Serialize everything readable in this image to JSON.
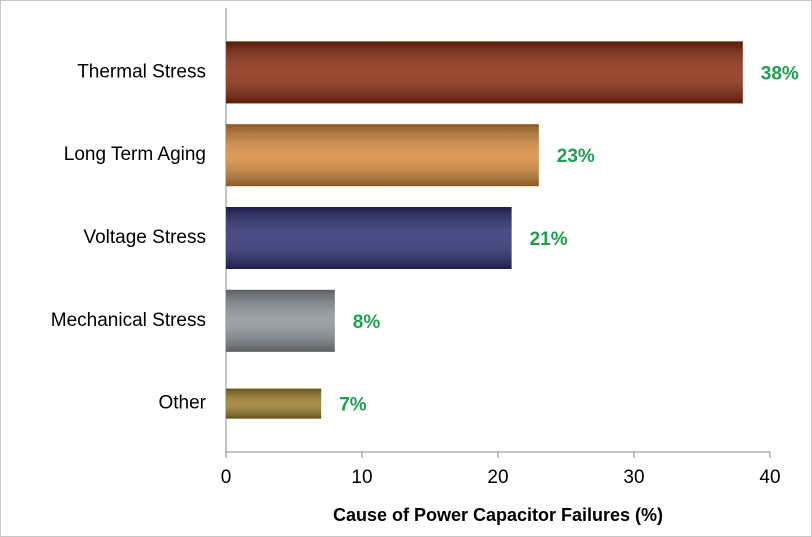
{
  "chart_data": {
    "type": "barh",
    "xlabel": "Cause of Power Capacitor Failures (%)",
    "categories": [
      "Thermal Stress",
      "Long Term Aging",
      "Voltage Stress",
      "Mechanical Stress",
      "Other"
    ],
    "values": [
      38,
      23,
      21,
      8,
      7
    ],
    "value_labels": [
      "38%",
      "23%",
      "21%",
      "8%",
      "7%"
    ],
    "colors": [
      "#8a2a0c",
      "#d68a3c",
      "#2b2d72",
      "#8c9399",
      "#9b7b2b"
    ],
    "xlim": [
      0,
      40
    ],
    "xticks": [
      0,
      10,
      20,
      30,
      40
    ],
    "grid": false
  }
}
